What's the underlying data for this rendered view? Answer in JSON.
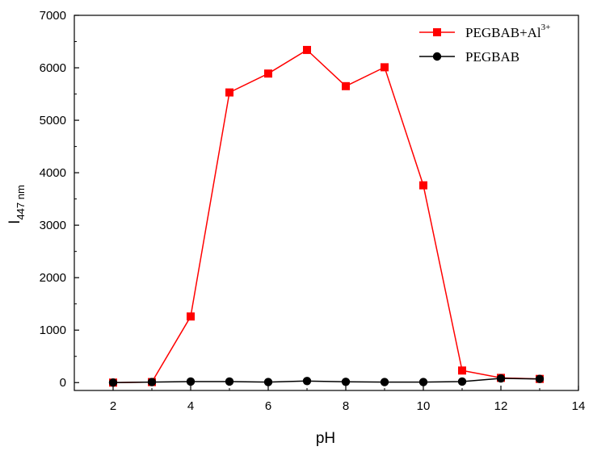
{
  "chart_data": {
    "type": "line",
    "xlabel": "pH",
    "ylabel": {
      "main": "I",
      "subscript": "447 nm"
    },
    "xlim": [
      1,
      14
    ],
    "ylim": [
      -150,
      7000
    ],
    "xticks": [
      2,
      4,
      6,
      8,
      10,
      12,
      14
    ],
    "yticks": [
      0,
      1000,
      2000,
      3000,
      4000,
      5000,
      6000,
      7000
    ],
    "grid": false,
    "legend_position": "top-right",
    "x": [
      2,
      3,
      4,
      5,
      6,
      7,
      8,
      9,
      10,
      11,
      12,
      13
    ],
    "series": [
      {
        "name": "PEGBAB+Al",
        "name_superscript": "3+",
        "marker": "square",
        "color": "#ff0000",
        "values": [
          0,
          10,
          1260,
          5530,
          5890,
          6340,
          5650,
          6010,
          3760,
          230,
          90,
          70
        ]
      },
      {
        "name": "PEGBAB",
        "marker": "circle",
        "color": "#000000",
        "values": [
          0,
          10,
          20,
          20,
          10,
          30,
          15,
          10,
          10,
          20,
          80,
          70
        ]
      }
    ]
  }
}
